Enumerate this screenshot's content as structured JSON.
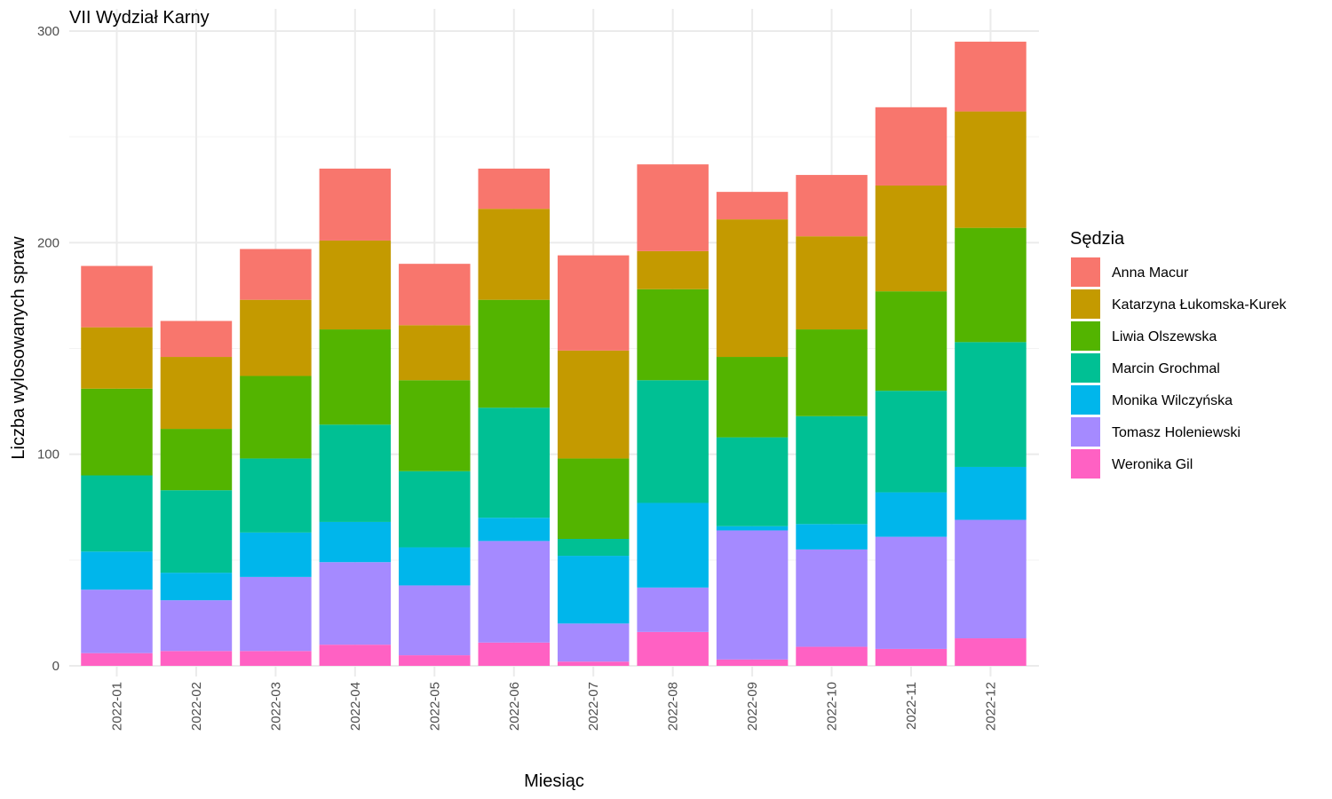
{
  "chart_data": {
    "type": "bar",
    "stacked": true,
    "title": "VII Wydział Karny",
    "xlabel": "Miesiąc",
    "ylabel": "Liczba wylosowanych spraw",
    "ylim": [
      0,
      300
    ],
    "yticks": [
      0,
      100,
      200,
      300
    ],
    "grid": true,
    "legend": {
      "title": "Sędzia",
      "position": "right"
    },
    "categories": [
      "2022-01",
      "2022-02",
      "2022-03",
      "2022-04",
      "2022-05",
      "2022-06",
      "2022-07",
      "2022-08",
      "2022-09",
      "2022-10",
      "2022-11",
      "2022-12"
    ],
    "series": [
      {
        "name": "Weronika Gil",
        "color": "#FF61C3",
        "values": [
          6,
          7,
          7,
          10,
          5,
          11,
          2,
          16,
          3,
          9,
          8,
          13
        ]
      },
      {
        "name": "Tomasz Holeniewski",
        "color": "#A58AFF",
        "values": [
          30,
          24,
          35,
          39,
          33,
          48,
          18,
          21,
          61,
          46,
          53,
          56
        ]
      },
      {
        "name": "Monika Wilczyńska",
        "color": "#00B6EB",
        "values": [
          18,
          13,
          21,
          19,
          18,
          11,
          32,
          40,
          2,
          12,
          21,
          25
        ]
      },
      {
        "name": "Marcin Grochmal",
        "color": "#00C094",
        "values": [
          36,
          39,
          35,
          46,
          36,
          52,
          8,
          58,
          42,
          51,
          48,
          59
        ]
      },
      {
        "name": "Liwia Olszewska",
        "color": "#53B400",
        "values": [
          41,
          29,
          39,
          45,
          43,
          51,
          38,
          43,
          38,
          41,
          47,
          54
        ]
      },
      {
        "name": "Katarzyna Łukomska-Kurek",
        "color": "#C49A00",
        "values": [
          29,
          34,
          36,
          42,
          26,
          43,
          51,
          18,
          65,
          44,
          50,
          55
        ]
      },
      {
        "name": "Anna Macur",
        "color": "#F8766D",
        "values": [
          29,
          17,
          24,
          34,
          29,
          19,
          45,
          41,
          13,
          29,
          37,
          33
        ]
      }
    ],
    "legend_order": [
      "Anna Macur",
      "Katarzyna Łukomska-Kurek",
      "Liwia Olszewska",
      "Marcin Grochmal",
      "Monika Wilczyńska",
      "Tomasz Holeniewski",
      "Weronika Gil"
    ]
  }
}
